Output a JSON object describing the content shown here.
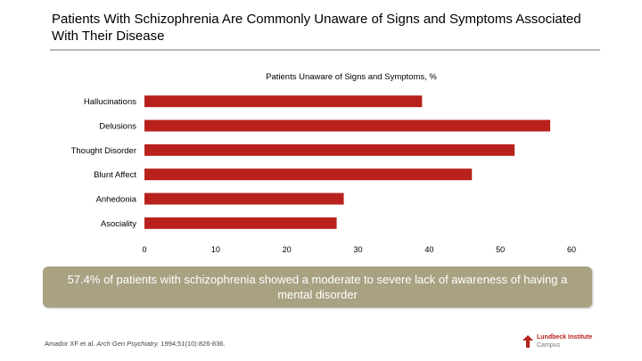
{
  "title": "Patients With Schizophrenia Are Commonly Unaware of Signs and Symptoms Associated With Their Disease",
  "chart_data": {
    "type": "bar",
    "orientation": "horizontal",
    "title": "Patients Unaware of Signs and Symptoms, %",
    "categories": [
      "Hallucinations",
      "Delusions",
      "Thought Disorder",
      "Blunt Affect",
      "Anhedonia",
      "Asociality"
    ],
    "values": [
      39,
      57,
      52,
      46,
      28,
      27
    ],
    "xlim": [
      0,
      60
    ],
    "xticks": [
      0,
      10,
      20,
      30,
      40,
      50,
      60
    ],
    "grid": false,
    "bar_color": "#b8211c"
  },
  "callout": "57.4% of patients with schizophrenia showed a moderate to severe lack of awareness of having a mental disorder",
  "citation": {
    "authors": "Amador XF et al.",
    "journal": "Arch Gen Psychiatry.",
    "details": "1994;51(10):826-836."
  },
  "logo": {
    "line1": "Lundbeck Institute",
    "line2": "Campus"
  }
}
